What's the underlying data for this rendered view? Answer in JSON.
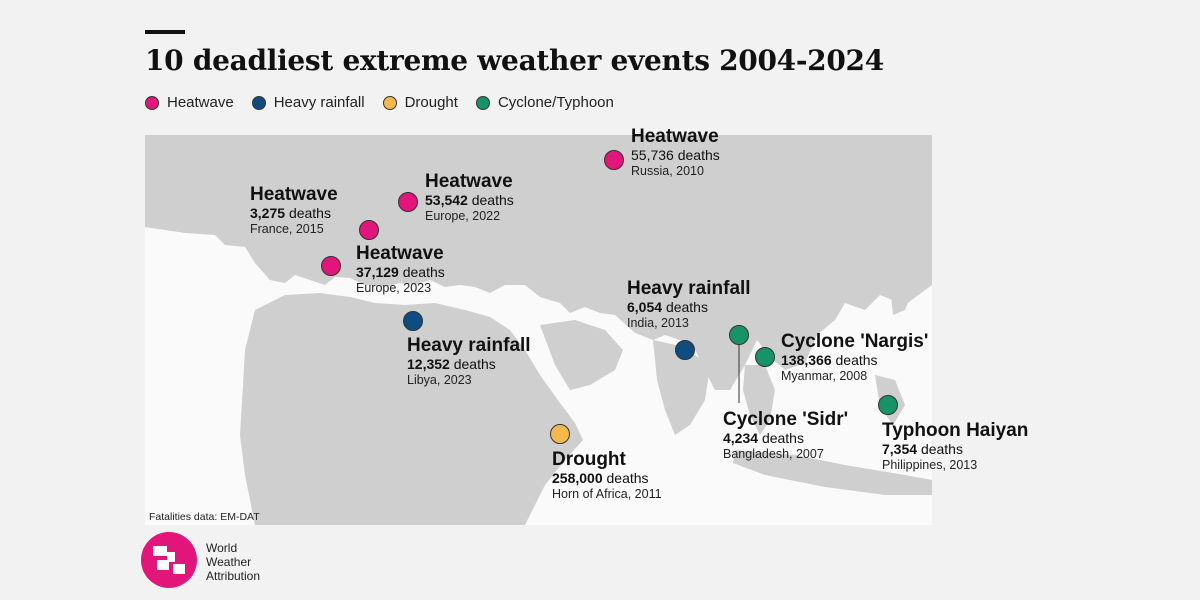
{
  "title": "10 deadliest extreme weather events 2004-2024",
  "legend": [
    {
      "label": "Heatwave",
      "color": "#e2167a"
    },
    {
      "label": "Heavy rainfall",
      "color": "#0f4c81"
    },
    {
      "label": "Drought",
      "color": "#f5b84d"
    },
    {
      "label": "Cyclone/Typhoon",
      "color": "#169467"
    }
  ],
  "events": [
    {
      "type": "Heatwave",
      "title": "Heatwave",
      "deaths": "55,736",
      "place": "Russia, 2010"
    },
    {
      "type": "Heatwave",
      "title": "Heatwave",
      "deaths": "53,542",
      "place": "Europe, 2022"
    },
    {
      "type": "Heatwave",
      "title": "Heatwave",
      "deaths": "3,275",
      "place": "France, 2015"
    },
    {
      "type": "Heatwave",
      "title": "Heatwave",
      "deaths": "37,129",
      "place": "Europe, 2023"
    },
    {
      "type": "Heavy rainfall",
      "title": "Heavy rainfall",
      "deaths": "12,352",
      "place": "Libya, 2023"
    },
    {
      "type": "Heavy rainfall",
      "title": "Heavy rainfall",
      "deaths": "6,054",
      "place": "India, 2013"
    },
    {
      "type": "Cyclone/Typhoon",
      "title": "Cyclone 'Nargis'",
      "deaths": "138,366",
      "place": "Myanmar, 2008"
    },
    {
      "type": "Cyclone/Typhoon",
      "title": "Cyclone 'Sidr'",
      "deaths": "4,234",
      "place": "Bangladesh, 2007"
    },
    {
      "type": "Cyclone/Typhoon",
      "title": "Typhoon Haiyan",
      "deaths": "7,354",
      "place": "Philippines, 2013"
    },
    {
      "type": "Drought",
      "title": "Drought",
      "deaths": "258,000",
      "place": "Horn of Africa, 2011"
    }
  ],
  "deaths_word": "deaths",
  "source": "Fatalities data: EM-DAT",
  "logo": {
    "line1": "World",
    "line2": "Weather",
    "line3": "Attribution"
  }
}
